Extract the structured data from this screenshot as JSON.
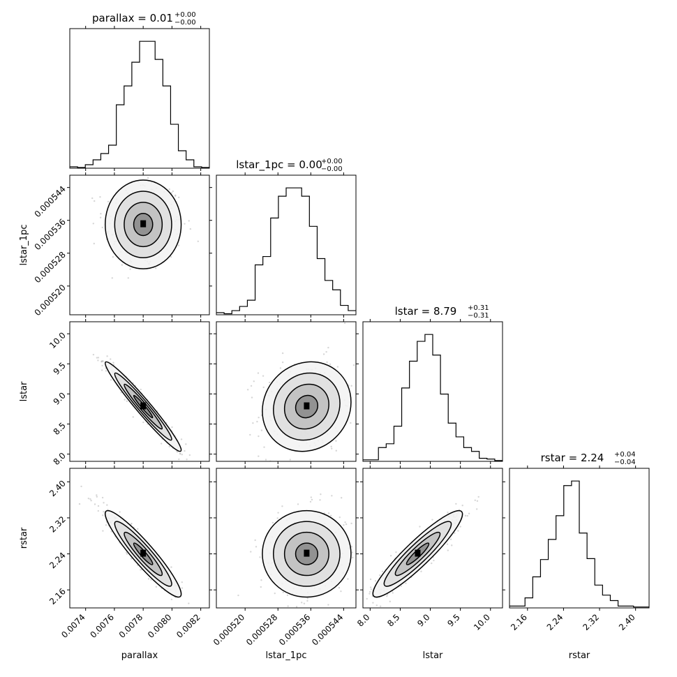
{
  "chart_data": {
    "type": "corner",
    "variables": [
      "parallax",
      "lstar_1pc",
      "lstar",
      "rstar"
    ],
    "titles": [
      {
        "text": "parallax = 0.01",
        "plus": "+0.00",
        "minus": "−0.00"
      },
      {
        "text": "lstar_1pc = 0.00",
        "plus": "+0.00",
        "minus": "−0.00"
      },
      {
        "text": "lstar = 8.79",
        "plus": "+0.31",
        "minus": "−0.31"
      },
      {
        "text": "rstar = 2.24",
        "plus": "+0.04",
        "minus": "−0.04"
      }
    ],
    "ranges": [
      [
        0.00729,
        0.00826
      ],
      [
        0.000513,
        0.000547
      ],
      [
        7.88,
        10.2
      ],
      [
        2.12,
        2.43
      ]
    ],
    "ticks": [
      {
        "values": [
          0.0074,
          0.0076,
          0.0078,
          0.008,
          0.0082
        ],
        "labels": [
          "0.0074",
          "0.0076",
          "0.0078",
          "0.0080",
          "0.0082"
        ]
      },
      {
        "values": [
          0.00052,
          0.000528,
          0.000536,
          0.000544
        ],
        "labels": [
          "0.000520",
          "0.000528",
          "0.000536",
          "0.000544"
        ]
      },
      {
        "values": [
          8.0,
          8.5,
          9.0,
          9.5,
          10.0
        ],
        "labels": [
          "8.0",
          "8.5",
          "9.0",
          "9.5",
          "10.0"
        ]
      },
      {
        "values": [
          2.16,
          2.24,
          2.32,
          2.4
        ],
        "labels": [
          "2.16",
          "2.24",
          "2.32",
          "2.40"
        ]
      }
    ],
    "histograms": [
      {
        "counts": [
          2,
          1,
          5,
          12,
          21,
          33,
          91,
          118,
          152,
          182,
          182,
          156,
          118,
          63,
          25,
          12,
          2,
          1
        ]
      },
      {
        "counts": [
          2,
          1,
          4,
          8,
          14,
          48,
          56,
          93,
          114,
          122,
          122,
          114,
          85,
          54,
          33,
          24,
          9,
          4
        ]
      },
      {
        "counts": [
          2,
          2,
          18,
          23,
          46,
          96,
          131,
          157,
          166,
          139,
          88,
          50,
          32,
          18,
          13,
          4,
          3,
          1
        ]
      },
      {
        "counts": [
          2,
          2,
          11,
          34,
          53,
          75,
          101,
          134,
          139,
          82,
          54,
          25,
          14,
          8,
          2,
          2,
          1,
          1
        ]
      }
    ],
    "medians": [
      0.0078,
      0.000535,
      8.79,
      2.24
    ],
    "sigmas": [
      0.00011,
      4.5e-06,
      0.31,
      0.04
    ],
    "correlations": {
      "1,0": 0.0,
      "2,0": -0.97,
      "2,1": 0.1,
      "3,0": -0.93,
      "3,1": 0.0,
      "3,2": 0.92
    },
    "contour_levels_sigma": [
      0.5,
      1.0,
      1.5,
      2.0
    ],
    "grid": false,
    "legend": "none"
  }
}
